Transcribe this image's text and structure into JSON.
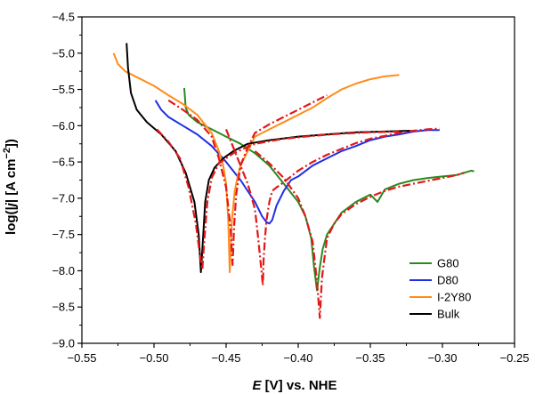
{
  "chart_data": {
    "type": "line",
    "xlabel": "E [V] vs. NHE",
    "ylabel": "log(|j| [A cm−2])",
    "xlim": [
      -0.55,
      -0.25
    ],
    "ylim": [
      -9.0,
      -4.5
    ],
    "xticks": [
      -0.55,
      -0.5,
      -0.45,
      -0.4,
      -0.35,
      -0.3,
      -0.25
    ],
    "xtick_labels": [
      "−0.55",
      "−0.50",
      "−0.45",
      "−0.40",
      "−0.35",
      "−0.30",
      "−0.25"
    ],
    "yticks": [
      -9.0,
      -8.5,
      -8.0,
      -7.5,
      -7.0,
      -6.5,
      -6.0,
      -5.5,
      -5.0,
      -4.5
    ],
    "ytick_labels": [
      "−9.0",
      "−8.5",
      "−8.0",
      "−7.5",
      "−7.0",
      "−6.5",
      "−6.0",
      "−5.5",
      "−5.0",
      "−4.5"
    ],
    "grid": false,
    "legend_position": "bottom-right",
    "series": [
      {
        "name": "G80",
        "color": "#2a8a1f",
        "x": [
          -0.479,
          -0.478,
          -0.476,
          -0.47,
          -0.46,
          -0.45,
          -0.44,
          -0.43,
          -0.42,
          -0.41,
          -0.4,
          -0.395,
          -0.391,
          -0.389,
          -0.387,
          -0.385,
          -0.383,
          -0.38,
          -0.375,
          -0.37,
          -0.36,
          -0.35,
          -0.345,
          -0.34,
          -0.33,
          -0.32,
          -0.31,
          -0.3,
          -0.29,
          -0.285,
          -0.28,
          -0.278
        ],
        "y": [
          -5.48,
          -5.75,
          -5.85,
          -5.95,
          -6.05,
          -6.15,
          -6.25,
          -6.38,
          -6.55,
          -6.8,
          -7.05,
          -7.25,
          -7.55,
          -7.95,
          -8.27,
          -7.95,
          -7.7,
          -7.5,
          -7.35,
          -7.2,
          -7.05,
          -6.95,
          -7.05,
          -6.88,
          -6.8,
          -6.75,
          -6.72,
          -6.7,
          -6.68,
          -6.65,
          -6.62,
          -6.63
        ]
      },
      {
        "name": "D80",
        "color": "#1f2ee6",
        "x": [
          -0.499,
          -0.495,
          -0.49,
          -0.48,
          -0.47,
          -0.46,
          -0.45,
          -0.44,
          -0.43,
          -0.425,
          -0.422,
          -0.42,
          -0.418,
          -0.415,
          -0.41,
          -0.405,
          -0.4,
          -0.39,
          -0.38,
          -0.37,
          -0.36,
          -0.35,
          -0.34,
          -0.33,
          -0.32,
          -0.31,
          -0.302
        ],
        "y": [
          -5.65,
          -5.78,
          -5.88,
          -6.0,
          -6.12,
          -6.28,
          -6.5,
          -6.75,
          -7.05,
          -7.25,
          -7.33,
          -7.35,
          -7.3,
          -7.1,
          -6.9,
          -6.75,
          -6.7,
          -6.55,
          -6.45,
          -6.35,
          -6.28,
          -6.2,
          -6.15,
          -6.12,
          -6.08,
          -6.06,
          -6.06
        ]
      },
      {
        "name": "I-2Y80",
        "color": "#ff8c1a",
        "x": [
          -0.528,
          -0.525,
          -0.52,
          -0.51,
          -0.5,
          -0.49,
          -0.48,
          -0.47,
          -0.46,
          -0.455,
          -0.452,
          -0.45,
          -0.4485,
          -0.4475,
          -0.446,
          -0.444,
          -0.442,
          -0.44,
          -0.435,
          -0.43,
          -0.42,
          -0.41,
          -0.4,
          -0.39,
          -0.38,
          -0.37,
          -0.36,
          -0.35,
          -0.34,
          -0.33
        ],
        "y": [
          -5.0,
          -5.15,
          -5.25,
          -5.35,
          -5.45,
          -5.58,
          -5.7,
          -5.85,
          -6.1,
          -6.35,
          -6.55,
          -6.8,
          -7.3,
          -8.02,
          -7.3,
          -6.9,
          -6.7,
          -6.55,
          -6.35,
          -6.15,
          -6.05,
          -5.95,
          -5.85,
          -5.75,
          -5.62,
          -5.5,
          -5.42,
          -5.36,
          -5.32,
          -5.3
        ]
      },
      {
        "name": "Bulk",
        "color": "#000000",
        "x": [
          -0.519,
          -0.518,
          -0.516,
          -0.512,
          -0.505,
          -0.495,
          -0.485,
          -0.478,
          -0.472,
          -0.469,
          -0.4675,
          -0.466,
          -0.4645,
          -0.462,
          -0.458,
          -0.452,
          -0.445,
          -0.435,
          -0.42,
          -0.4,
          -0.38,
          -0.36,
          -0.34,
          -0.322
        ],
        "y": [
          -4.86,
          -5.2,
          -5.55,
          -5.78,
          -5.95,
          -6.12,
          -6.35,
          -6.65,
          -7.05,
          -7.5,
          -8.02,
          -7.55,
          -7.05,
          -6.75,
          -6.58,
          -6.45,
          -6.35,
          -6.25,
          -6.2,
          -6.15,
          -6.12,
          -6.09,
          -6.08,
          -6.07
        ]
      }
    ],
    "fits": [
      {
        "color": "#e21818",
        "style": "dash-dot",
        "x": [
          -0.45,
          -0.445,
          -0.44,
          -0.435,
          -0.43,
          -0.428,
          -0.426,
          -0.4245,
          -0.424,
          -0.423,
          -0.422,
          -0.42,
          -0.418,
          -0.415,
          -0.41,
          -0.405,
          -0.4,
          -0.39,
          -0.38,
          -0.37,
          -0.36,
          -0.35,
          -0.34,
          -0.33,
          -0.32,
          -0.31,
          -0.302
        ],
        "y": [
          -6.05,
          -6.3,
          -6.55,
          -6.8,
          -7.15,
          -7.5,
          -7.9,
          -8.2,
          -7.85,
          -7.55,
          -7.3,
          -7.05,
          -6.9,
          -6.85,
          -6.78,
          -6.7,
          -6.62,
          -6.5,
          -6.4,
          -6.32,
          -6.24,
          -6.18,
          -6.14,
          -6.1,
          -6.07,
          -6.05,
          -6.04
        ]
      },
      {
        "color": "#e21818",
        "style": "dash-dot",
        "x": [
          -0.43,
          -0.42,
          -0.41,
          -0.4,
          -0.395,
          -0.39,
          -0.387,
          -0.385,
          -0.3835,
          -0.382,
          -0.38,
          -0.375,
          -0.37,
          -0.36,
          -0.35,
          -0.34,
          -0.33,
          -0.32,
          -0.31,
          -0.3,
          -0.29,
          -0.285
        ],
        "y": [
          -6.35,
          -6.52,
          -6.72,
          -7.0,
          -7.25,
          -7.6,
          -8.15,
          -8.65,
          -8.1,
          -7.85,
          -7.55,
          -7.35,
          -7.22,
          -7.08,
          -6.98,
          -6.9,
          -6.84,
          -6.8,
          -6.76,
          -6.72,
          -6.68,
          -6.65
        ]
      },
      {
        "color": "#e21818",
        "style": "dash-dot",
        "x": [
          -0.49,
          -0.48,
          -0.47,
          -0.46,
          -0.455,
          -0.45,
          -0.447,
          -0.4455,
          -0.4445,
          -0.443,
          -0.44,
          -0.435,
          -0.43,
          -0.42,
          -0.41,
          -0.4,
          -0.39,
          -0.38
        ],
        "y": [
          -5.65,
          -5.78,
          -5.92,
          -6.15,
          -6.45,
          -6.85,
          -7.4,
          -7.92,
          -7.4,
          -6.95,
          -6.55,
          -6.3,
          -6.1,
          -5.98,
          -5.88,
          -5.78,
          -5.68,
          -5.58
        ]
      },
      {
        "color": "#e21818",
        "style": "dash-dot",
        "x": [
          -0.498,
          -0.49,
          -0.482,
          -0.476,
          -0.471,
          -0.468,
          -0.4665,
          -0.465,
          -0.463,
          -0.46,
          -0.455,
          -0.445,
          -0.43,
          -0.41,
          -0.39,
          -0.37,
          -0.35,
          -0.33
        ],
        "y": [
          -6.05,
          -6.22,
          -6.45,
          -6.85,
          -7.35,
          -7.8,
          -7.98,
          -7.55,
          -7.05,
          -6.72,
          -6.52,
          -6.38,
          -6.25,
          -6.18,
          -6.14,
          -6.11,
          -6.09,
          -6.08
        ]
      }
    ]
  }
}
